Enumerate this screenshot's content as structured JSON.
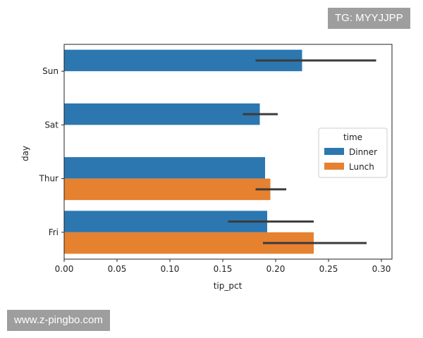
{
  "watermarks": {
    "top": "TG: MYYJJPP",
    "bottom": "www.z-pingbo.com"
  },
  "chart_data": {
    "type": "bar",
    "orientation": "horizontal",
    "title": "",
    "xlabel": "tip_pct",
    "ylabel": "day",
    "categories": [
      "Sun",
      "Sat",
      "Thur",
      "Fri"
    ],
    "xlim": [
      0.0,
      0.31
    ],
    "xticks": [
      "0.00",
      "0.05",
      "0.10",
      "0.15",
      "0.20",
      "0.25",
      "0.30"
    ],
    "grid": false,
    "legend": {
      "title": "time",
      "placement": "center-right"
    },
    "series": [
      {
        "name": "Dinner",
        "color": "#2c77b0",
        "values": [
          0.225,
          0.185,
          0.19,
          0.192
        ],
        "ci": [
          [
            0.181,
            0.295
          ],
          [
            0.169,
            0.202
          ],
          null,
          [
            0.155,
            0.236
          ]
        ]
      },
      {
        "name": "Lunch",
        "color": "#e68130",
        "values": [
          null,
          null,
          0.195,
          0.236
        ],
        "ci": [
          null,
          null,
          [
            0.181,
            0.21
          ],
          [
            0.188,
            0.286
          ]
        ]
      }
    ],
    "errorbar_color": "#3b3b3b"
  }
}
